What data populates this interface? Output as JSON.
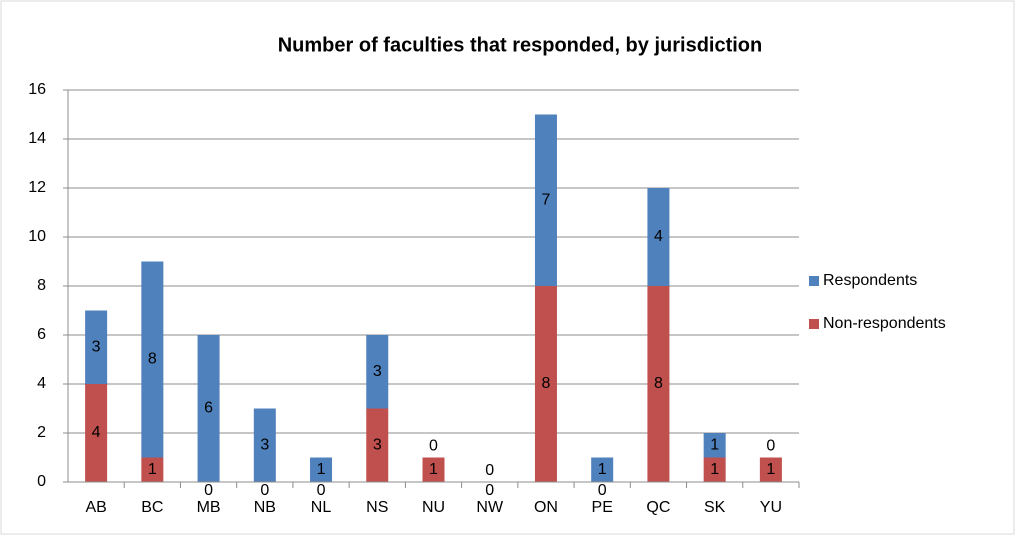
{
  "chart_data": {
    "type": "stacked_bar",
    "title": "Number of faculties that responded, by jurisdiction",
    "categories": [
      "AB",
      "BC",
      "MB",
      "NB",
      "NL",
      "NS",
      "NU",
      "NW",
      "ON",
      "PE",
      "QC",
      "SK",
      "YU"
    ],
    "series": [
      {
        "name": "Respondents",
        "color": "#4f81bd",
        "values": [
          3,
          8,
          6,
          3,
          1,
          3,
          0,
          0,
          7,
          1,
          4,
          1,
          0
        ]
      },
      {
        "name": "Non-respondents",
        "color": "#c0504d",
        "values": [
          4,
          1,
          0,
          0,
          0,
          3,
          1,
          0,
          8,
          0,
          8,
          1,
          1
        ]
      }
    ],
    "ylim": [
      0,
      16
    ],
    "yticks": [
      0,
      2,
      4,
      6,
      8,
      10,
      12,
      14,
      16
    ],
    "grid": true,
    "legend": "right"
  }
}
